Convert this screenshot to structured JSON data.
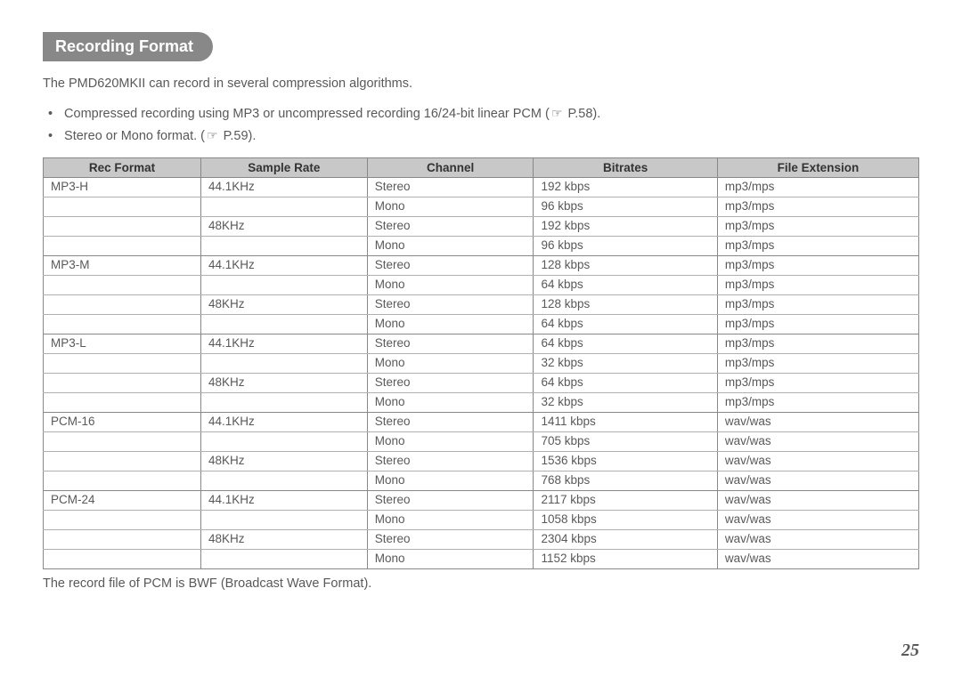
{
  "header": {
    "title": "Recording Format"
  },
  "intro": {
    "text": "The PMD620MKII can record in several compression algorithms."
  },
  "bullets": [
    {
      "pre": "Compressed recording using MP3 or uncompressed recording 16/24-bit linear PCM (",
      "ref": "P.58",
      "post": ")."
    },
    {
      "pre": "Stereo or Mono format. (",
      "ref": "P.59",
      "post": ")."
    }
  ],
  "icon": {
    "hand": "☞"
  },
  "table": {
    "columns": [
      "Rec Format",
      "Sample Rate",
      "Channel",
      "Bitrates",
      "File Extension"
    ],
    "rows": [
      {
        "format": "MP3-H",
        "sample": "44.1KHz",
        "channel": "Stereo",
        "bitrate": "192 kbps",
        "ext": "mp3/mps",
        "group_end": false
      },
      {
        "format": "",
        "sample": "",
        "channel": "Mono",
        "bitrate": "96 kbps",
        "ext": "mp3/mps",
        "group_end": false
      },
      {
        "format": "",
        "sample": "48KHz",
        "channel": "Stereo",
        "bitrate": "192 kbps",
        "ext": "mp3/mps",
        "group_end": false
      },
      {
        "format": "",
        "sample": "",
        "channel": "Mono",
        "bitrate": "96 kbps",
        "ext": "mp3/mps",
        "group_end": true
      },
      {
        "format": "MP3-M",
        "sample": "44.1KHz",
        "channel": "Stereo",
        "bitrate": "128 kbps",
        "ext": "mp3/mps",
        "group_end": false
      },
      {
        "format": "",
        "sample": "",
        "channel": "Mono",
        "bitrate": "64 kbps",
        "ext": "mp3/mps",
        "group_end": false
      },
      {
        "format": "",
        "sample": "48KHz",
        "channel": "Stereo",
        "bitrate": "128 kbps",
        "ext": "mp3/mps",
        "group_end": false
      },
      {
        "format": "",
        "sample": "",
        "channel": "Mono",
        "bitrate": "64 kbps",
        "ext": "mp3/mps",
        "group_end": true
      },
      {
        "format": "MP3-L",
        "sample": "44.1KHz",
        "channel": "Stereo",
        "bitrate": "64 kbps",
        "ext": "mp3/mps",
        "group_end": false
      },
      {
        "format": "",
        "sample": "",
        "channel": "Mono",
        "bitrate": "32 kbps",
        "ext": "mp3/mps",
        "group_end": false
      },
      {
        "format": "",
        "sample": "48KHz",
        "channel": "Stereo",
        "bitrate": "64 kbps",
        "ext": "mp3/mps",
        "group_end": false
      },
      {
        "format": "",
        "sample": "",
        "channel": "Mono",
        "bitrate": "32 kbps",
        "ext": "mp3/mps",
        "group_end": true
      },
      {
        "format": "PCM-16",
        "sample": "44.1KHz",
        "channel": "Stereo",
        "bitrate": "1411 kbps",
        "ext": "wav/was",
        "group_end": false
      },
      {
        "format": "",
        "sample": "",
        "channel": "Mono",
        "bitrate": "705 kbps",
        "ext": "wav/was",
        "group_end": false
      },
      {
        "format": "",
        "sample": "48KHz",
        "channel": "Stereo",
        "bitrate": "1536 kbps",
        "ext": "wav/was",
        "group_end": false
      },
      {
        "format": "",
        "sample": "",
        "channel": "Mono",
        "bitrate": "768 kbps",
        "ext": "wav/was",
        "group_end": true
      },
      {
        "format": "PCM-24",
        "sample": "44.1KHz",
        "channel": "Stereo",
        "bitrate": "2117 kbps",
        "ext": "wav/was",
        "group_end": false
      },
      {
        "format": "",
        "sample": "",
        "channel": "Mono",
        "bitrate": "1058 kbps",
        "ext": "wav/was",
        "group_end": false
      },
      {
        "format": "",
        "sample": "48KHz",
        "channel": "Stereo",
        "bitrate": "2304 kbps",
        "ext": "wav/was",
        "group_end": false
      },
      {
        "format": "",
        "sample": "",
        "channel": "Mono",
        "bitrate": "1152 kbps",
        "ext": "wav/was",
        "group_end": true
      }
    ]
  },
  "footnote": {
    "text": "The record file of PCM is BWF (Broadcast Wave Format)."
  },
  "page": {
    "number": "25"
  }
}
